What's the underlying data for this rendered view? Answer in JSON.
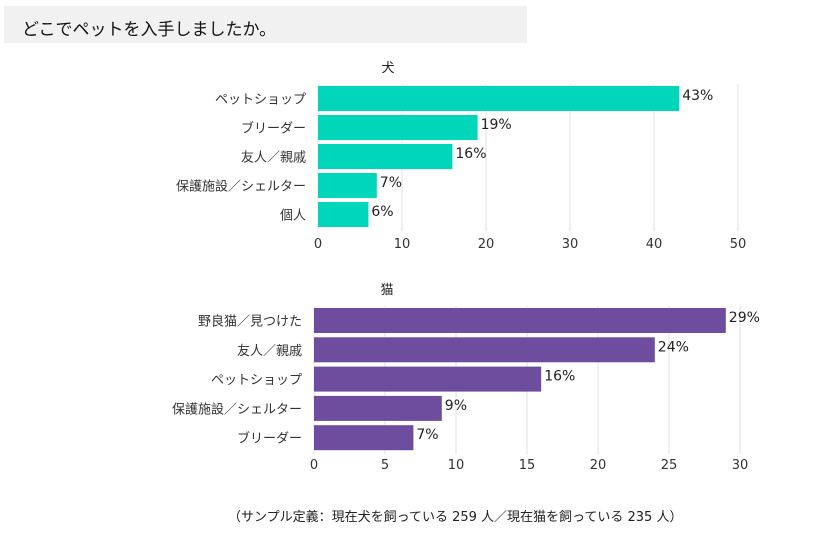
{
  "question": "どこでペットを入手しましたか。",
  "footnote": "（サンプル定義：現在犬を飼っている 259 人／現在猫を飼っている 235 人）",
  "chart_data": [
    {
      "type": "bar",
      "orientation": "horizontal",
      "title": "犬",
      "categories": [
        "ペットショップ",
        "ブリーダー",
        "友人／親戚",
        "保護施設／シェルター",
        "個人"
      ],
      "values": [
        43,
        19,
        16,
        7,
        6
      ],
      "value_labels": [
        "43%",
        "19%",
        "16%",
        "7%",
        "6%"
      ],
      "xlim": [
        0,
        50
      ],
      "xticks": [
        0,
        10,
        20,
        30,
        40,
        50
      ],
      "grid": true,
      "color": "#00d6b9"
    },
    {
      "type": "bar",
      "orientation": "horizontal",
      "title": "猫",
      "categories": [
        "野良猫／見つけた",
        "友人／親戚",
        "ペットショップ",
        "保護施設／シェルター",
        "ブリーダー"
      ],
      "values": [
        29,
        24,
        16,
        9,
        7
      ],
      "value_labels": [
        "29%",
        "24%",
        "16%",
        "9%",
        "7%"
      ],
      "xlim": [
        0,
        30
      ],
      "xticks": [
        0,
        5,
        10,
        15,
        20,
        25,
        30
      ],
      "grid": true,
      "color": "#6e4c9e"
    }
  ]
}
